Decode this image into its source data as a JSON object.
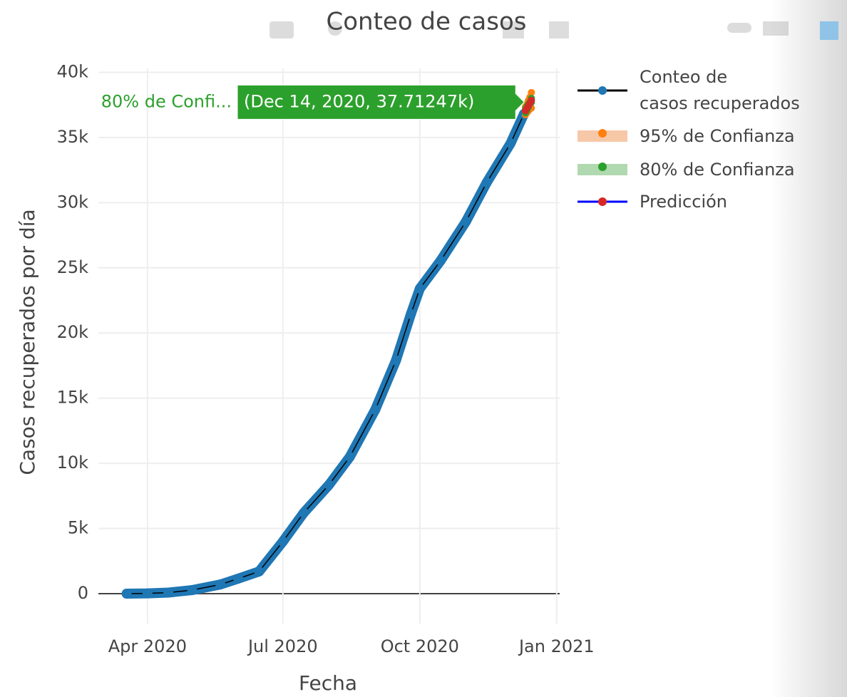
{
  "chart_data": {
    "type": "line",
    "title": "Conteo de casos",
    "x_label": "Fecha",
    "y_label": "Casos recuperados por día",
    "xlim": [
      "2020-02-28",
      "2021-01-03"
    ],
    "xticks": [
      {
        "value": "2020-04-01",
        "label": "Apr 2020"
      },
      {
        "value": "2020-07-01",
        "label": "Jul 2020"
      },
      {
        "value": "2020-10-01",
        "label": "Oct 2020"
      },
      {
        "value": "2021-01-01",
        "label": "Jan 2021"
      }
    ],
    "ylim": [
      -2300,
      40300
    ],
    "yticks": [
      0,
      {
        "value": 5000,
        "label": "5k"
      },
      {
        "value": 10000,
        "label": "10k"
      },
      {
        "value": 15000,
        "label": "15k"
      },
      {
        "value": 20000,
        "label": "20k"
      },
      {
        "value": 25000,
        "label": "25k"
      },
      {
        "value": 30000,
        "label": "30k"
      },
      {
        "value": 35000,
        "label": "35k"
      },
      {
        "value": 40000,
        "label": "40k"
      }
    ],
    "grid": true,
    "legend": "right",
    "series": [
      {
        "name": "Conteo de\ncasos recuperados",
        "color": "#1f77b4",
        "line_color": "#000000",
        "x": [
          "2020-03-18",
          "2020-04-01",
          "2020-04-15",
          "2020-05-01",
          "2020-05-20",
          "2020-06-01",
          "2020-06-15",
          "2020-07-01",
          "2020-07-15",
          "2020-08-01",
          "2020-08-15",
          "2020-09-01",
          "2020-09-15",
          "2020-09-25",
          "2020-10-01",
          "2020-10-15",
          "2020-11-01",
          "2020-11-15",
          "2020-12-01",
          "2020-12-10"
        ],
        "values": [
          0,
          20,
          80,
          270,
          700,
          1150,
          1700,
          4000,
          6200,
          8350,
          10500,
          14100,
          17900,
          21450,
          23400,
          25550,
          28550,
          31550,
          34550,
          36800
        ]
      },
      {
        "name": "95% de Confianza",
        "color": "#ff7f0e",
        "band_color": "#f4b183",
        "x": [
          "2020-12-11",
          "2020-12-12",
          "2020-12-13",
          "2020-12-14",
          "2020-12-15"
        ],
        "lower": [
          36750,
          36900,
          37050,
          37200,
          37250
        ],
        "upper": [
          37350,
          37600,
          37850,
          38100,
          38450
        ]
      },
      {
        "name": "80% de Confianza",
        "color": "#2ca02c",
        "band_color": "#8fc98f",
        "x": [
          "2020-12-11",
          "2020-12-12",
          "2020-12-13",
          "2020-12-14",
          "2020-12-15"
        ],
        "lower": [
          36900,
          37100,
          37340,
          37590,
          37700
        ],
        "upper": [
          37200,
          37400,
          37560,
          37712.47,
          38000
        ]
      },
      {
        "name": "Predicción",
        "color": "#d62728",
        "line_color": "#0000ff",
        "x": [
          "2020-12-11",
          "2020-12-12",
          "2020-12-13",
          "2020-12-14",
          "2020-12-15"
        ],
        "values": [
          37050,
          37250,
          37450,
          37650,
          37850
        ]
      }
    ],
    "hover": {
      "name": "80% de Confi...",
      "text": "(Dec 14, 2020, 37.71247k)"
    }
  }
}
